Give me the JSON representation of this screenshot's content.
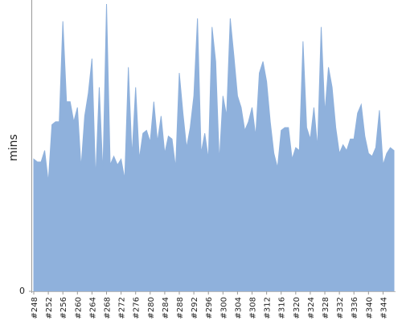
{
  "chart_data": {
    "type": "area",
    "y_label": "mins",
    "color": "#8fb1dc",
    "categories": [
      "#248",
      null,
      null,
      null,
      "#252",
      null,
      null,
      null,
      "#256",
      null,
      null,
      null,
      "#260",
      null,
      null,
      null,
      "#264",
      null,
      null,
      null,
      "#268",
      null,
      null,
      null,
      "#272",
      null,
      null,
      null,
      "#276",
      null,
      null,
      null,
      "#280",
      null,
      null,
      null,
      "#284",
      null,
      null,
      null,
      "#288",
      null,
      null,
      null,
      "#292",
      null,
      null,
      null,
      "#296",
      null,
      null,
      null,
      "#300",
      null,
      null,
      null,
      "#304",
      null,
      null,
      null,
      "#308",
      null,
      null,
      null,
      "#312",
      null,
      null,
      null,
      "#316",
      null,
      null,
      null,
      "#320",
      null,
      null,
      null,
      "#324",
      null,
      null,
      null,
      "#328",
      null,
      null,
      null,
      "#332",
      null,
      null,
      null,
      "#336",
      null,
      null,
      null,
      "#340",
      null,
      null,
      null,
      "#344",
      null,
      null,
      null
    ],
    "values": [
      46,
      45,
      45,
      49,
      38,
      58,
      59,
      59,
      94,
      66,
      66,
      59,
      64,
      43,
      61,
      69,
      81,
      39,
      71,
      41,
      100,
      44,
      47,
      44,
      46,
      39,
      78,
      47,
      71,
      46,
      55,
      56,
      52,
      66,
      52,
      61,
      48,
      54,
      53,
      43,
      76,
      62,
      50,
      57,
      68,
      95,
      48,
      55,
      46,
      92,
      80,
      45,
      68,
      61,
      95,
      82,
      68,
      64,
      56,
      59,
      64,
      54,
      76,
      80,
      73,
      59,
      48,
      43,
      56,
      57,
      57,
      46,
      50,
      49,
      87,
      57,
      53,
      64,
      50,
      92,
      62,
      78,
      71,
      57,
      48,
      51,
      49,
      53,
      53,
      62,
      65,
      54,
      48,
      47,
      50,
      63,
      44,
      48,
      50,
      49
    ],
    "ylim": [
      0,
      100
    ],
    "yticks": [
      0
    ]
  }
}
